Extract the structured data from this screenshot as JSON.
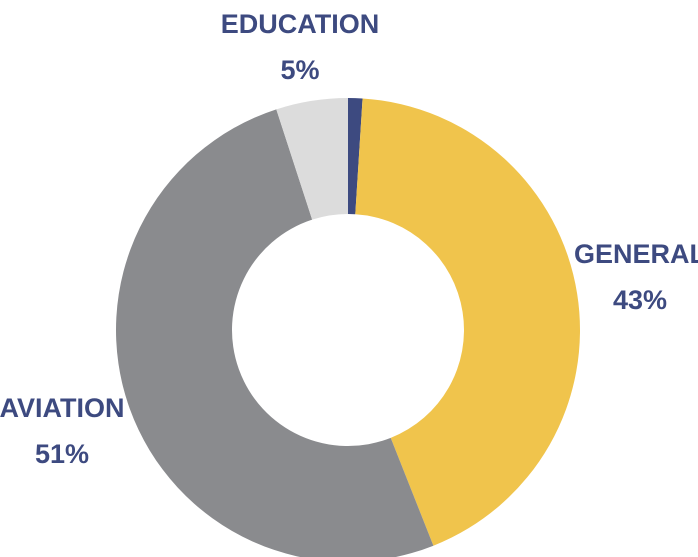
{
  "chart_data": {
    "type": "donut",
    "categories": [
      null,
      "GENERAL",
      "AVIATION",
      "EDUCATION"
    ],
    "values": [
      1,
      43,
      51,
      5
    ],
    "value_labels": [
      null,
      "43%",
      "51%",
      "5%"
    ],
    "colors": [
      "#3d4a80",
      "#f0c44c",
      "#8a8b8e",
      "#dcdcdc"
    ]
  }
}
